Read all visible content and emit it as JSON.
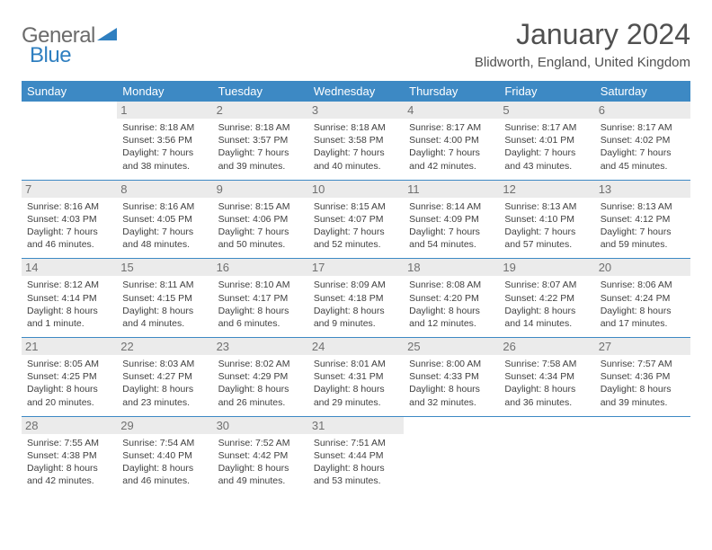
{
  "logo": {
    "text1": "General",
    "text2": "Blue"
  },
  "title": "January 2024",
  "location": "Blidworth, England, United Kingdom",
  "header_color": "#3d89c4",
  "daynum_bg": "#ebebeb",
  "divider_color": "#3d89c4",
  "weekdays": [
    "Sunday",
    "Monday",
    "Tuesday",
    "Wednesday",
    "Thursday",
    "Friday",
    "Saturday"
  ],
  "weeks": [
    [
      {
        "n": "",
        "sr": "",
        "ss": "",
        "dl": ""
      },
      {
        "n": "1",
        "sr": "Sunrise: 8:18 AM",
        "ss": "Sunset: 3:56 PM",
        "dl": "Daylight: 7 hours and 38 minutes."
      },
      {
        "n": "2",
        "sr": "Sunrise: 8:18 AM",
        "ss": "Sunset: 3:57 PM",
        "dl": "Daylight: 7 hours and 39 minutes."
      },
      {
        "n": "3",
        "sr": "Sunrise: 8:18 AM",
        "ss": "Sunset: 3:58 PM",
        "dl": "Daylight: 7 hours and 40 minutes."
      },
      {
        "n": "4",
        "sr": "Sunrise: 8:17 AM",
        "ss": "Sunset: 4:00 PM",
        "dl": "Daylight: 7 hours and 42 minutes."
      },
      {
        "n": "5",
        "sr": "Sunrise: 8:17 AM",
        "ss": "Sunset: 4:01 PM",
        "dl": "Daylight: 7 hours and 43 minutes."
      },
      {
        "n": "6",
        "sr": "Sunrise: 8:17 AM",
        "ss": "Sunset: 4:02 PM",
        "dl": "Daylight: 7 hours and 45 minutes."
      }
    ],
    [
      {
        "n": "7",
        "sr": "Sunrise: 8:16 AM",
        "ss": "Sunset: 4:03 PM",
        "dl": "Daylight: 7 hours and 46 minutes."
      },
      {
        "n": "8",
        "sr": "Sunrise: 8:16 AM",
        "ss": "Sunset: 4:05 PM",
        "dl": "Daylight: 7 hours and 48 minutes."
      },
      {
        "n": "9",
        "sr": "Sunrise: 8:15 AM",
        "ss": "Sunset: 4:06 PM",
        "dl": "Daylight: 7 hours and 50 minutes."
      },
      {
        "n": "10",
        "sr": "Sunrise: 8:15 AM",
        "ss": "Sunset: 4:07 PM",
        "dl": "Daylight: 7 hours and 52 minutes."
      },
      {
        "n": "11",
        "sr": "Sunrise: 8:14 AM",
        "ss": "Sunset: 4:09 PM",
        "dl": "Daylight: 7 hours and 54 minutes."
      },
      {
        "n": "12",
        "sr": "Sunrise: 8:13 AM",
        "ss": "Sunset: 4:10 PM",
        "dl": "Daylight: 7 hours and 57 minutes."
      },
      {
        "n": "13",
        "sr": "Sunrise: 8:13 AM",
        "ss": "Sunset: 4:12 PM",
        "dl": "Daylight: 7 hours and 59 minutes."
      }
    ],
    [
      {
        "n": "14",
        "sr": "Sunrise: 8:12 AM",
        "ss": "Sunset: 4:14 PM",
        "dl": "Daylight: 8 hours and 1 minute."
      },
      {
        "n": "15",
        "sr": "Sunrise: 8:11 AM",
        "ss": "Sunset: 4:15 PM",
        "dl": "Daylight: 8 hours and 4 minutes."
      },
      {
        "n": "16",
        "sr": "Sunrise: 8:10 AM",
        "ss": "Sunset: 4:17 PM",
        "dl": "Daylight: 8 hours and 6 minutes."
      },
      {
        "n": "17",
        "sr": "Sunrise: 8:09 AM",
        "ss": "Sunset: 4:18 PM",
        "dl": "Daylight: 8 hours and 9 minutes."
      },
      {
        "n": "18",
        "sr": "Sunrise: 8:08 AM",
        "ss": "Sunset: 4:20 PM",
        "dl": "Daylight: 8 hours and 12 minutes."
      },
      {
        "n": "19",
        "sr": "Sunrise: 8:07 AM",
        "ss": "Sunset: 4:22 PM",
        "dl": "Daylight: 8 hours and 14 minutes."
      },
      {
        "n": "20",
        "sr": "Sunrise: 8:06 AM",
        "ss": "Sunset: 4:24 PM",
        "dl": "Daylight: 8 hours and 17 minutes."
      }
    ],
    [
      {
        "n": "21",
        "sr": "Sunrise: 8:05 AM",
        "ss": "Sunset: 4:25 PM",
        "dl": "Daylight: 8 hours and 20 minutes."
      },
      {
        "n": "22",
        "sr": "Sunrise: 8:03 AM",
        "ss": "Sunset: 4:27 PM",
        "dl": "Daylight: 8 hours and 23 minutes."
      },
      {
        "n": "23",
        "sr": "Sunrise: 8:02 AM",
        "ss": "Sunset: 4:29 PM",
        "dl": "Daylight: 8 hours and 26 minutes."
      },
      {
        "n": "24",
        "sr": "Sunrise: 8:01 AM",
        "ss": "Sunset: 4:31 PM",
        "dl": "Daylight: 8 hours and 29 minutes."
      },
      {
        "n": "25",
        "sr": "Sunrise: 8:00 AM",
        "ss": "Sunset: 4:33 PM",
        "dl": "Daylight: 8 hours and 32 minutes."
      },
      {
        "n": "26",
        "sr": "Sunrise: 7:58 AM",
        "ss": "Sunset: 4:34 PM",
        "dl": "Daylight: 8 hours and 36 minutes."
      },
      {
        "n": "27",
        "sr": "Sunrise: 7:57 AM",
        "ss": "Sunset: 4:36 PM",
        "dl": "Daylight: 8 hours and 39 minutes."
      }
    ],
    [
      {
        "n": "28",
        "sr": "Sunrise: 7:55 AM",
        "ss": "Sunset: 4:38 PM",
        "dl": "Daylight: 8 hours and 42 minutes."
      },
      {
        "n": "29",
        "sr": "Sunrise: 7:54 AM",
        "ss": "Sunset: 4:40 PM",
        "dl": "Daylight: 8 hours and 46 minutes."
      },
      {
        "n": "30",
        "sr": "Sunrise: 7:52 AM",
        "ss": "Sunset: 4:42 PM",
        "dl": "Daylight: 8 hours and 49 minutes."
      },
      {
        "n": "31",
        "sr": "Sunrise: 7:51 AM",
        "ss": "Sunset: 4:44 PM",
        "dl": "Daylight: 8 hours and 53 minutes."
      },
      {
        "n": "",
        "sr": "",
        "ss": "",
        "dl": ""
      },
      {
        "n": "",
        "sr": "",
        "ss": "",
        "dl": ""
      },
      {
        "n": "",
        "sr": "",
        "ss": "",
        "dl": ""
      }
    ]
  ]
}
